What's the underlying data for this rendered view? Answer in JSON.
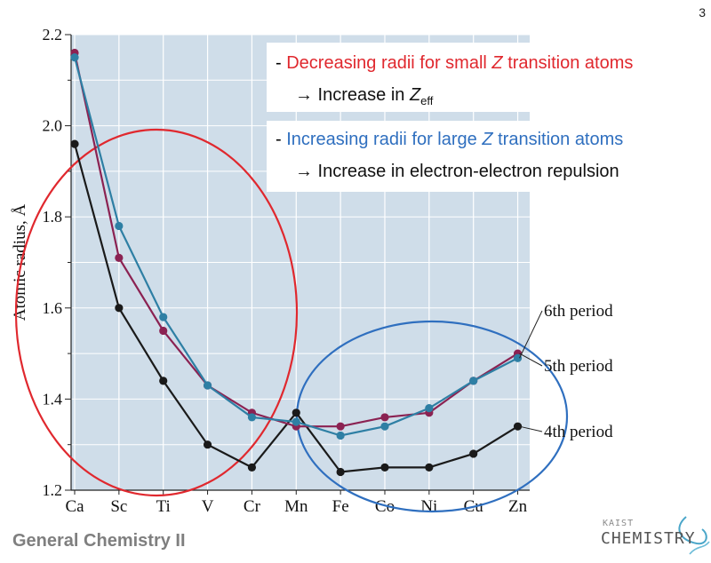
{
  "page_number": "3",
  "annotations": {
    "red_line1_prefix": "- ",
    "red_line1_a": "Decreasing radii for small ",
    "red_line1_z": "Z",
    "red_line1_b": " transition atoms",
    "red_line2_arrow": "→ Increase in ",
    "red_line2_z": "Z",
    "red_line2_sub": "eff",
    "blue_line1_prefix": "- ",
    "blue_line1_a": "Increasing radii for large ",
    "blue_line1_z": "Z",
    "blue_line1_b": " transition atoms",
    "blue_line2": "→ Increase in electron-electron repulsion"
  },
  "footer": {
    "course": "General Chemistry II"
  },
  "logo": {
    "small": "KAIST",
    "big": "CHEMISTRY"
  },
  "colors": {
    "plot_bg": "#cfdde9",
    "grid": "#ffffff",
    "period4": "#1a1a1a",
    "period5": "#8b2252",
    "period6": "#2e7fa4",
    "red_accent": "#e0282e",
    "blue_accent": "#2f6fbf"
  },
  "chart_data": {
    "type": "line",
    "title": "",
    "xlabel": "",
    "ylabel": "Atomic radius, Å",
    "categories": [
      "Ca",
      "Sc",
      "Ti",
      "V",
      "Cr",
      "Mn",
      "Fe",
      "Co",
      "Ni",
      "Cu",
      "Zn"
    ],
    "ylim": [
      1.2,
      2.2
    ],
    "yticks": [
      "1.2",
      "1.4",
      "1.6",
      "1.8",
      "2.0",
      "2.2"
    ],
    "grid": true,
    "series": [
      {
        "name": "4th period",
        "key": "period4",
        "values": [
          1.96,
          1.6,
          1.44,
          1.3,
          1.25,
          1.37,
          1.24,
          1.25,
          1.25,
          1.28,
          1.34
        ]
      },
      {
        "name": "5th period",
        "key": "period5",
        "values": [
          2.16,
          1.71,
          1.55,
          1.43,
          1.37,
          1.34,
          1.34,
          1.36,
          1.37,
          1.44,
          1.5
        ]
      },
      {
        "name": "6th period",
        "key": "period6",
        "values": [
          2.15,
          1.78,
          1.58,
          1.43,
          1.36,
          1.35,
          1.32,
          1.34,
          1.38,
          1.44,
          1.49
        ]
      }
    ]
  }
}
